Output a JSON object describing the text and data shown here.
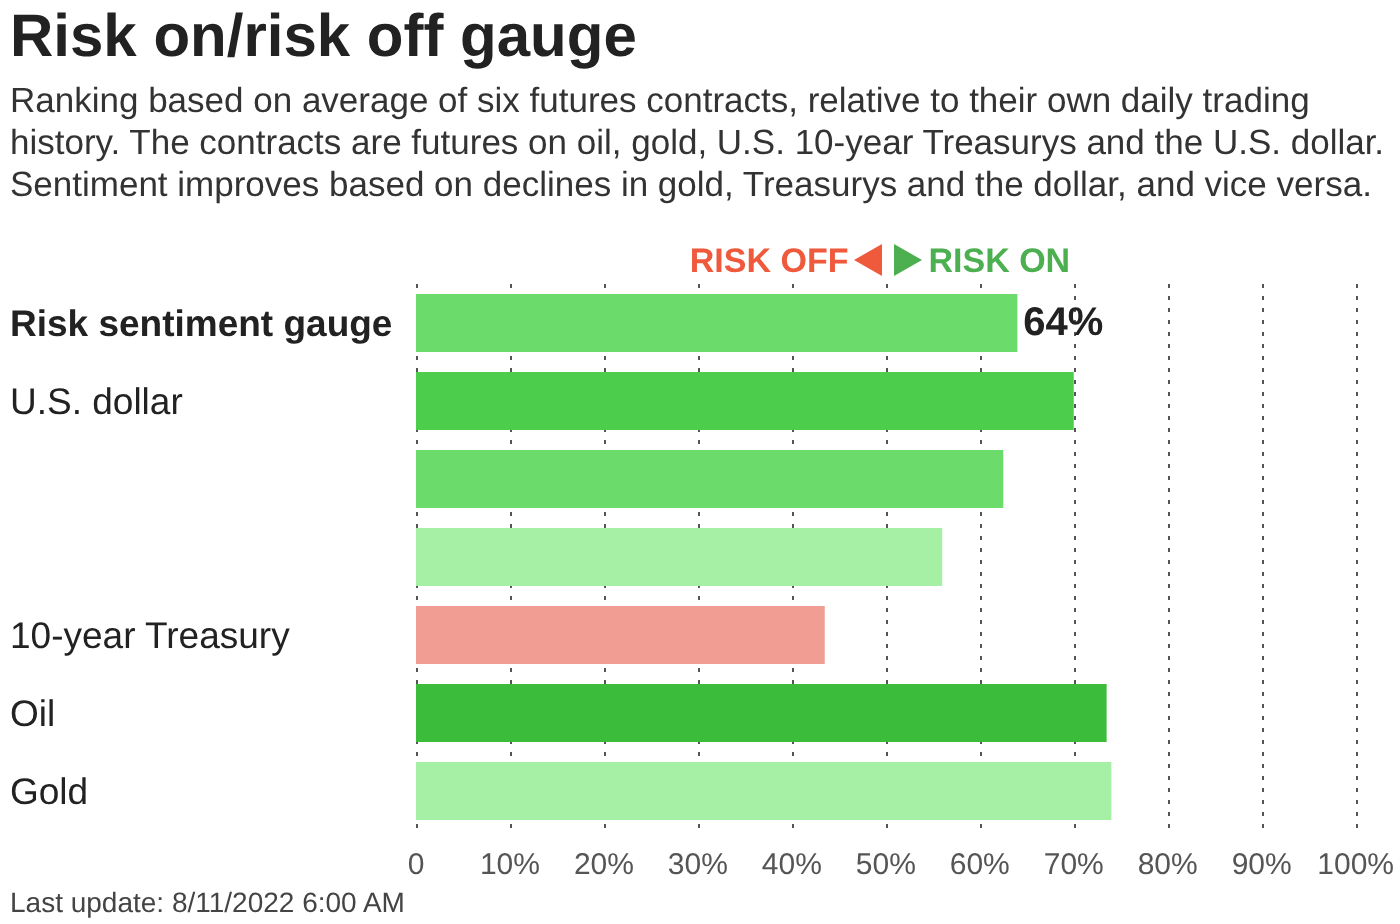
{
  "chart_data": {
    "type": "bar",
    "orientation": "horizontal",
    "title": "Risk on/risk off gauge",
    "subtitle": "Ranking based on average of six futures contracts, relative to their own daily trading history. The contracts are futures on oil, gold, U.S. 10-year Treasurys and the U.S. dollar. Sentiment improves based on declines in gold, Treasurys and the dollar, and vice versa.",
    "annotations": [
      "RISK OFF",
      "RISK ON",
      "Last update: 8/11/2022 6:00 AM"
    ],
    "categories": [
      "Risk sentiment gauge",
      "U.S. dollar",
      null,
      null,
      "10-year Treasury",
      "Oil",
      "Gold"
    ],
    "values": [
      64,
      70,
      62.5,
      56,
      43.5,
      73.5,
      74
    ],
    "colors": [
      "#6bdc6b",
      "#4ccd4c",
      "#6bdc6b",
      "#a6f0a6",
      "#f29d94",
      "#3bbd3b",
      "#a6f0a6"
    ],
    "value_labels": [
      "64%",
      null,
      null,
      null,
      null,
      null,
      null
    ],
    "xlim": [
      0,
      100
    ],
    "xticks": [
      {
        "value": 0,
        "label": "0"
      },
      {
        "value": 10,
        "label": "10%"
      },
      {
        "value": 20,
        "label": "20%"
      },
      {
        "value": 30,
        "label": "30%"
      },
      {
        "value": 40,
        "label": "40%"
      },
      {
        "value": 50,
        "label": "50%"
      },
      {
        "value": 60,
        "label": "60%"
      },
      {
        "value": 70,
        "label": "70%"
      },
      {
        "value": 80,
        "label": "80%"
      },
      {
        "value": 90,
        "label": "90%"
      },
      {
        "value": 100,
        "label": "100%"
      }
    ],
    "grid": "x"
  }
}
